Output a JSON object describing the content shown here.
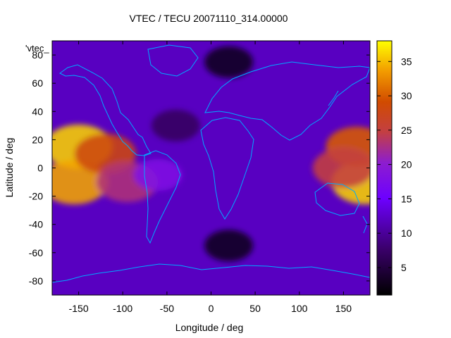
{
  "chart_data": {
    "type": "heatmap",
    "title": "VTEC / TECU 20071110_314.00000",
    "xlabel": "Longitude / deg",
    "ylabel": "Latitude / deg",
    "series_label": "'vtec_",
    "xlim": [
      -180,
      180
    ],
    "ylim": [
      -90,
      90
    ],
    "zlim": [
      1,
      38
    ],
    "x_ticks": [
      -150,
      -100,
      -50,
      0,
      50,
      100,
      150
    ],
    "y_ticks": [
      -80,
      -60,
      -40,
      -20,
      0,
      20,
      40,
      60,
      80
    ],
    "colorbar_ticks": [
      5,
      10,
      15,
      20,
      25,
      30,
      35
    ],
    "x_tick_labels": [
      "-150",
      "-100",
      "-50",
      "0",
      "50",
      "100",
      "150"
    ],
    "y_tick_labels": [
      "-80",
      "-60",
      "-40",
      "-20",
      "0",
      "20",
      "40",
      "60",
      "80"
    ],
    "colorbar_tick_labels": [
      "5",
      "10",
      "15",
      "20",
      "25",
      "30",
      "35"
    ],
    "colormap": "black-purple-red-yellow",
    "grid": false,
    "background_level": 12,
    "coastline_color": "#00aaff",
    "features": [
      {
        "lon": -150,
        "lat": 15,
        "vtec": 36
      },
      {
        "lon": -155,
        "lat": -10,
        "vtec": 34
      },
      {
        "lon": -120,
        "lat": 10,
        "vtec": 28
      },
      {
        "lon": -95,
        "lat": -10,
        "vtec": 23
      },
      {
        "lon": -60,
        "lat": -5,
        "vtec": 18
      },
      {
        "lon": 175,
        "lat": -10,
        "vtec": 36
      },
      {
        "lon": 165,
        "lat": 15,
        "vtec": 30
      },
      {
        "lon": 150,
        "lat": 0,
        "vtec": 25
      },
      {
        "lon": 20,
        "lat": -55,
        "vtec": 3
      },
      {
        "lon": 20,
        "lat": 75,
        "vtec": 3
      },
      {
        "lon": -40,
        "lat": 30,
        "vtec": 7
      }
    ]
  }
}
